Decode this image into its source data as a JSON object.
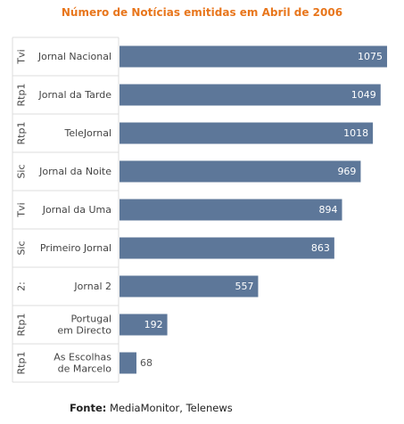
{
  "chart_data": {
    "type": "bar",
    "orientation": "horizontal",
    "title": "Número de Notícias emitidas em Abril de 2006",
    "categories": [
      {
        "channel": "Tvi",
        "program": "Jornal Nacional",
        "value": 1075
      },
      {
        "channel": "Rtp1",
        "program": "Jornal da Tarde",
        "value": 1049
      },
      {
        "channel": "Rtp1",
        "program": "TeleJornal",
        "value": 1018
      },
      {
        "channel": "Sic",
        "program": "Jornal da Noite",
        "value": 969
      },
      {
        "channel": "Tvi",
        "program": "Jornal da Uma",
        "value": 894
      },
      {
        "channel": "Sic",
        "program": "Primeiro Jornal",
        "value": 863
      },
      {
        "channel": "2:",
        "program": "Jornal 2",
        "value": 557
      },
      {
        "channel": "Rtp1",
        "program": "Portugal em Directo",
        "value": 192
      },
      {
        "channel": "Rtp1",
        "program": "As Escolhas de Marcelo",
        "value": 68
      }
    ],
    "xlim": [
      0,
      1100
    ],
    "bar_color": "#5d7799",
    "label_inside_color": "#ffffff",
    "label_outside_color": "#555555",
    "grid": false,
    "legend": "none"
  },
  "source": {
    "label": "Fonte:",
    "text": "MediaMonitor, Telenews"
  }
}
